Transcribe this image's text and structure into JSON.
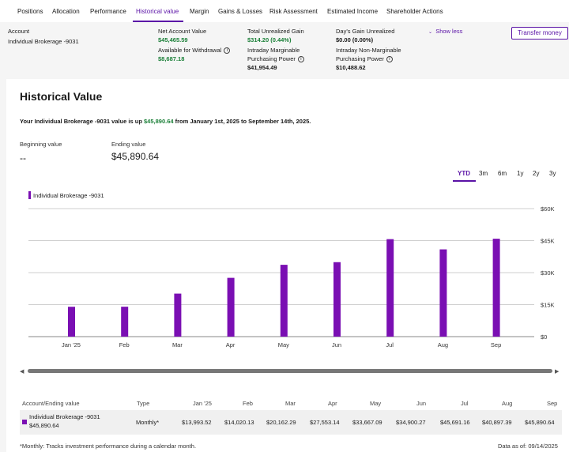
{
  "tabs": [
    "Positions",
    "Allocation",
    "Performance",
    "Historical value",
    "Margin",
    "Gains & Losses",
    "Risk Assessment",
    "Estimated Income",
    "Shareholder Actions"
  ],
  "account": {
    "label": "Account",
    "name": "Individual Brokerage -9031",
    "net_label": "Net Account Value",
    "net_value": "$45,465.59",
    "withdraw_label": "Available for Withdrawal",
    "withdraw_value": "$8,687.18",
    "unrealized_label": "Total Unrealized Gain",
    "unrealized_value": "$314.20 (0.44%)",
    "intraday_marg_label1": "Intraday Marginable",
    "intraday_marg_label2": "Purchasing Power",
    "intraday_marg_value": "$41,954.49",
    "day_gain_label": "Day's Gain Unrealized",
    "day_gain_value": "$0.00 (0.00%)",
    "intraday_nonmarg_label1": "Intraday Non-Marginable",
    "intraday_nonmarg_label2": "Purchasing Power",
    "intraday_nonmarg_value": "$10,488.62",
    "show_less": "Show less",
    "transfer": "Transfer money",
    "info_icon": "info-icon",
    "chevron_icon": "chevron-down-icon"
  },
  "historical": {
    "title": "Historical Value",
    "summary_pre": "Your Individual Brokerage -9031 value is up ",
    "summary_amount": "$45,890.64",
    "summary_post": " from January 1st, 2025 to September 14th, 2025.",
    "beginning_label": "Beginning value",
    "beginning_value": "--",
    "ending_label": "Ending value",
    "ending_value": "$45,890.64",
    "ranges": [
      "YTD",
      "3m",
      "6m",
      "1y",
      "2y",
      "3y"
    ],
    "active_range": "YTD"
  },
  "chart_data": {
    "type": "bar",
    "legend": "Individual Brokerage -9031",
    "categories": [
      "Jan '25",
      "Feb",
      "Mar",
      "Apr",
      "May",
      "Jun",
      "Jul",
      "Aug",
      "Sep"
    ],
    "values": [
      13993.52,
      14020.13,
      20162.29,
      27553.14,
      33667.09,
      34900.27,
      45691.16,
      40897.39,
      45890.64
    ],
    "y_ticks": [
      "$0",
      "$15K",
      "$30K",
      "$45K",
      "$60K"
    ],
    "ylim": [
      0,
      60000
    ],
    "color": "#7a0fb3"
  },
  "table": {
    "headers": [
      "Account/Ending value",
      "Type",
      "Jan '25",
      "Feb",
      "Mar",
      "Apr",
      "May",
      "Jun",
      "Jul",
      "Aug",
      "Sep"
    ],
    "row": {
      "name": "Individual Brokerage -9031",
      "ending": "$45,890.64",
      "type": "Monthly*",
      "values": [
        "$13,993.52",
        "$14,020.13",
        "$20,162.29",
        "$27,553.14",
        "$33,667.09",
        "$34,900.27",
        "$45,691.16",
        "$40,897.39",
        "$45,890.64"
      ]
    }
  },
  "footer": {
    "note": "*Monthly: Tracks investment performance during a calendar month.",
    "data_as_of": "Data as of: 09/14/2025"
  }
}
